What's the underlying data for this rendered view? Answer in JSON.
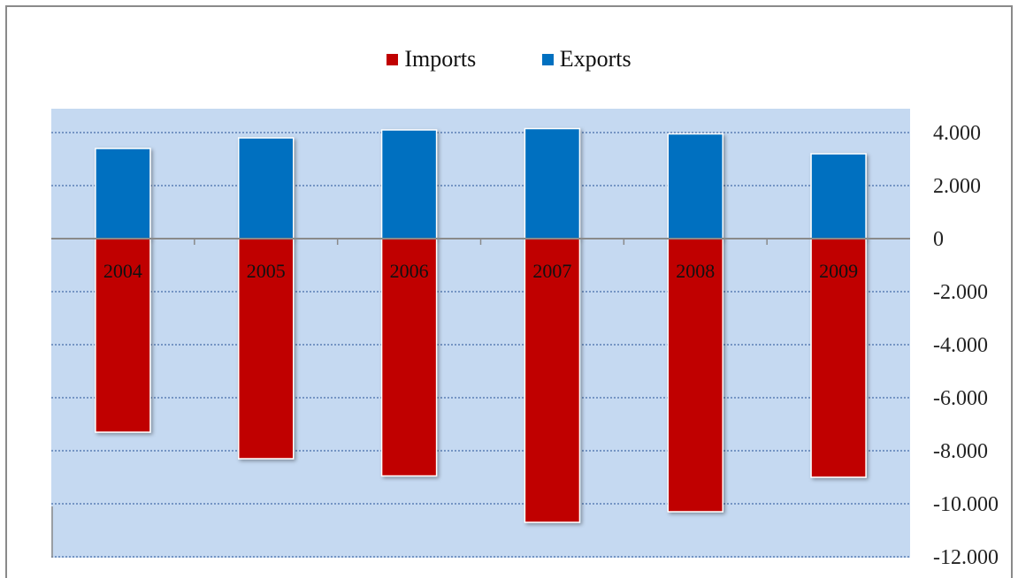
{
  "chart_data": {
    "type": "bar",
    "categories": [
      "2004",
      "2005",
      "2006",
      "2007",
      "2008",
      "2009"
    ],
    "series": [
      {
        "name": "Imports",
        "values": [
          -7300,
          -8300,
          -8950,
          -10700,
          -10300,
          -9000
        ]
      },
      {
        "name": "Exports",
        "values": [
          3400,
          3800,
          4100,
          4150,
          3950,
          3200
        ]
      }
    ],
    "ylim": [
      -12000,
      5000
    ],
    "yticks": [
      4000,
      2000,
      0,
      -2000,
      -4000,
      -6000,
      -8000,
      -10000,
      -12000
    ],
    "ytick_labels": [
      "4.000",
      "2.000",
      "0",
      "-2.000",
      "-4.000",
      "-6.000",
      "-8.000",
      "-10.000",
      "-12.000"
    ],
    "y_axis_position": "right",
    "grid": true,
    "legend_position": "top-center",
    "colors": {
      "Imports": "#c00000",
      "Exports": "#0070c0",
      "plot_background": "#c5d9f1",
      "grid": "#5b7fb5"
    }
  }
}
